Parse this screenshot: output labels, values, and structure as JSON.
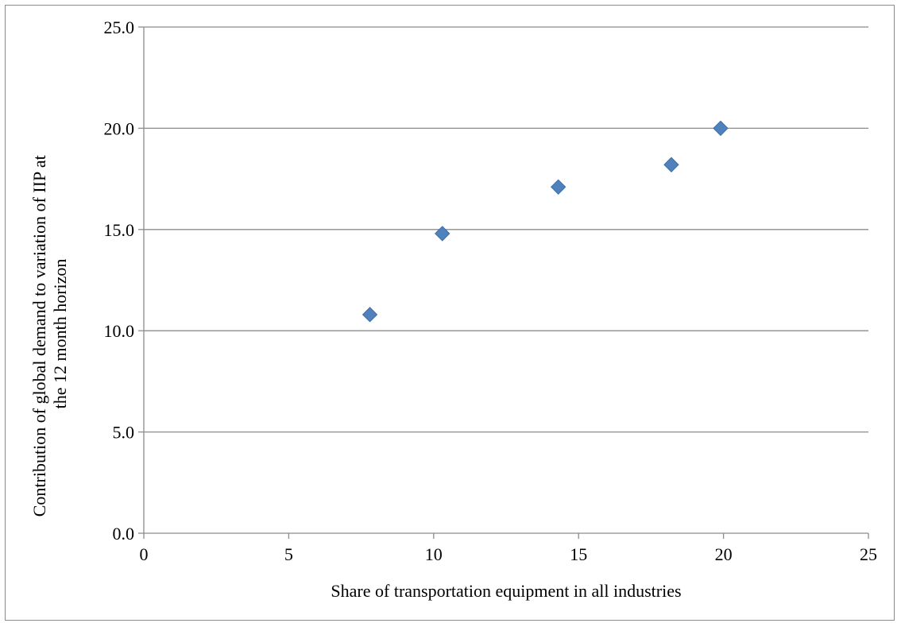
{
  "chart_data": {
    "type": "scatter",
    "xlabel": "Share of transportation equipment in all industries",
    "ylabel_lines": [
      "Contribution of global demand to variation of IIP at",
      "the 12 month horizon"
    ],
    "xlim": [
      0,
      25
    ],
    "ylim": [
      0,
      25
    ],
    "x_ticks": [
      0,
      5,
      10,
      15,
      20,
      25
    ],
    "y_ticks": [
      0,
      5,
      10,
      15,
      20,
      25
    ],
    "x_tick_labels": [
      "0",
      "5",
      "10",
      "15",
      "20",
      "25"
    ],
    "y_tick_labels": [
      "0.0",
      "5.0",
      "10.0",
      "15.0",
      "20.0",
      "25.0"
    ],
    "grid": "horizontal",
    "legend": "none",
    "marker": "diamond",
    "marker_color": "#4f81bd",
    "series": [
      {
        "x": [
          7.8,
          10.3,
          14.3,
          18.2,
          19.9
        ],
        "y": [
          10.8,
          14.8,
          17.1,
          18.2,
          20.0
        ]
      }
    ]
  }
}
